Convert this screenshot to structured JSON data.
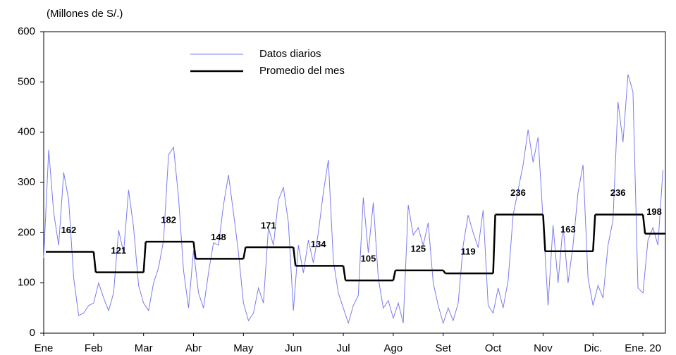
{
  "chart_data": {
    "type": "line",
    "y_label": "(Millones de S/.)",
    "xlim": [
      0,
      12.45
    ],
    "xticks": [
      {
        "value": 0,
        "label": "Ene"
      },
      {
        "value": 1,
        "label": "Feb"
      },
      {
        "value": 2,
        "label": "Mar"
      },
      {
        "value": 3,
        "label": "Abr"
      },
      {
        "value": 4,
        "label": "May"
      },
      {
        "value": 5,
        "label": "Jun"
      },
      {
        "value": 6,
        "label": "Jul"
      },
      {
        "value": 7,
        "label": "Ago"
      },
      {
        "value": 8,
        "label": "Set"
      },
      {
        "value": 9,
        "label": "Oct"
      },
      {
        "value": 10,
        "label": "Nov"
      },
      {
        "value": 11,
        "label": "Dic."
      },
      {
        "value": 12,
        "label": "Ene. 20"
      }
    ],
    "ylim": [
      0,
      600
    ],
    "yticks": [
      0,
      100,
      200,
      300,
      400,
      500,
      600
    ],
    "legend": "top-left",
    "series": [
      {
        "name": "Datos diarios",
        "color": "#7b7bf0",
        "x": [
          0,
          0.1,
          0.2,
          0.3,
          0.4,
          0.5,
          0.6,
          0.7,
          0.8,
          0.9,
          1,
          1.1,
          1.2,
          1.3,
          1.4,
          1.5,
          1.6,
          1.7,
          1.8,
          1.9,
          2,
          2.1,
          2.2,
          2.3,
          2.4,
          2.5,
          2.6,
          2.7,
          2.8,
          2.9,
          3,
          3.1,
          3.2,
          3.3,
          3.4,
          3.5,
          3.6,
          3.7,
          3.8,
          3.9,
          4,
          4.1,
          4.2,
          4.3,
          4.4,
          4.5,
          4.6,
          4.7,
          4.8,
          4.9,
          5,
          5.1,
          5.2,
          5.3,
          5.4,
          5.5,
          5.6,
          5.7,
          5.8,
          5.9,
          6,
          6.1,
          6.2,
          6.3,
          6.4,
          6.5,
          6.6,
          6.7,
          6.8,
          6.9,
          7,
          7.1,
          7.2,
          7.3,
          7.4,
          7.5,
          7.6,
          7.7,
          7.8,
          7.9,
          8,
          8.1,
          8.2,
          8.3,
          8.4,
          8.5,
          8.6,
          8.7,
          8.8,
          8.9,
          9,
          9.1,
          9.2,
          9.3,
          9.4,
          9.5,
          9.6,
          9.7,
          9.8,
          9.9,
          10,
          10.1,
          10.2,
          10.3,
          10.4,
          10.5,
          10.6,
          10.7,
          10.8,
          10.9,
          11,
          11.1,
          11.2,
          11.3,
          11.4,
          11.5,
          11.6,
          11.7,
          11.8,
          11.9,
          12,
          12.1,
          12.2,
          12.3,
          12.4
        ],
        "values": [
          150,
          365,
          240,
          175,
          320,
          265,
          110,
          35,
          40,
          55,
          60,
          100,
          70,
          45,
          80,
          205,
          160,
          285,
          210,
          95,
          60,
          45,
          100,
          130,
          185,
          355,
          370,
          270,
          125,
          50,
          165,
          80,
          50,
          120,
          180,
          175,
          255,
          315,
          240,
          160,
          60,
          25,
          40,
          90,
          60,
          210,
          175,
          265,
          290,
          220,
          45,
          175,
          120,
          185,
          140,
          200,
          280,
          345,
          145,
          80,
          50,
          20,
          55,
          75,
          270,
          160,
          260,
          110,
          50,
          65,
          30,
          60,
          20,
          255,
          195,
          210,
          175,
          220,
          100,
          55,
          20,
          50,
          25,
          60,
          175,
          235,
          200,
          170,
          245,
          55,
          40,
          90,
          50,
          105,
          235,
          285,
          335,
          405,
          340,
          390,
          225,
          55,
          215,
          100,
          215,
          100,
          175,
          280,
          335,
          110,
          55,
          95,
          70,
          175,
          225,
          460,
          380,
          515,
          480,
          90,
          80,
          185,
          210,
          175,
          325
        ]
      },
      {
        "name": "Promedio del mes",
        "color": "#000000",
        "x": [
          0,
          1,
          2,
          3,
          4,
          5,
          6,
          7,
          8,
          9,
          10,
          11,
          12
        ],
        "values": [
          162,
          121,
          182,
          148,
          171,
          134,
          105,
          125,
          119,
          236,
          163,
          236,
          198
        ]
      }
    ]
  }
}
